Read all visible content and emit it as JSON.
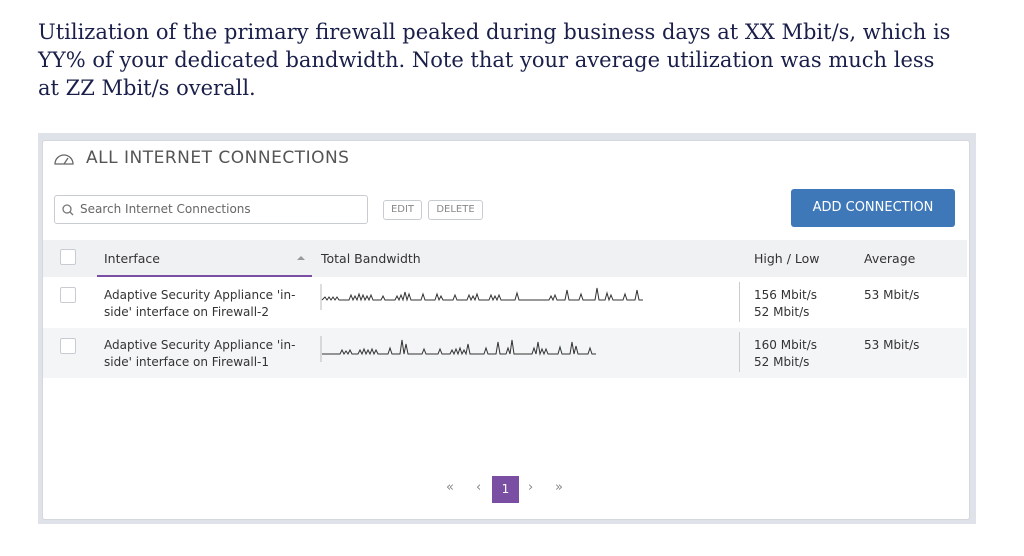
{
  "paragraph": {
    "lines": [
      "Utilization of the primary firewall peaked during business days at XX Mbit/s, which is",
      "YY% of your dedicated bandwidth. Note that your average utilization was much less",
      "at ZZ Mbit/s overall."
    ]
  },
  "panel": {
    "title": "ALL INTERNET CONNECTIONS",
    "search_placeholder": "Search Internet Connections",
    "buttons": {
      "edit": "EDIT",
      "delete": "DELETE",
      "add": "ADD CONNECTION"
    }
  },
  "table": {
    "headers": [
      "Interface",
      "Total Bandwidth",
      "High / Low",
      "Average"
    ],
    "rows": [
      {
        "interface": "Adaptive Security Appliance 'in-side' interface on Firewall-2",
        "high": "156 Mbit/s",
        "low": "52 Mbit/s",
        "average": "53 Mbit/s"
      },
      {
        "interface": "Adaptive Security Appliance 'in-side' interface on Firewall-1",
        "high": "160 Mbit/s",
        "low": "52 Mbit/s",
        "average": "53 Mbit/s"
      }
    ]
  },
  "pagination": {
    "first": "«",
    "previous": "‹",
    "current": "1",
    "next": "›",
    "last": "»"
  }
}
